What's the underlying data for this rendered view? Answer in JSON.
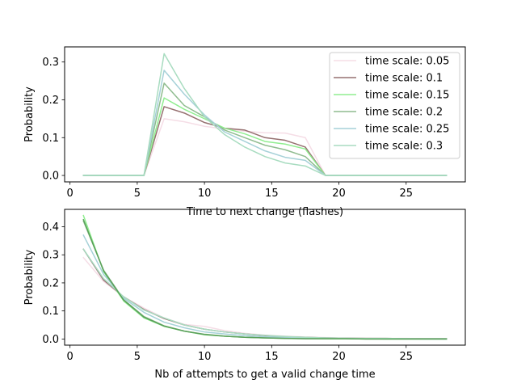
{
  "chart_data": [
    {
      "type": "line",
      "title": "",
      "xlabel": "Time to next change (flashes)",
      "ylabel": "Probability",
      "xlim": [
        -0.4,
        29.4
      ],
      "ylim": [
        -0.017,
        0.34
      ],
      "xticks": [
        0,
        5,
        10,
        15,
        20,
        25
      ],
      "yticks": [
        0.0,
        0.1,
        0.2,
        0.3
      ],
      "ytick_labels": [
        "0.0",
        "0.1",
        "0.2",
        "0.3"
      ],
      "grid": false,
      "legend_position": "top-right",
      "x": [
        1,
        2.5,
        4,
        5.5,
        7,
        8.5,
        10,
        11.5,
        13,
        14.5,
        16,
        17.5,
        19,
        20.5,
        22,
        23.5,
        25,
        26.5,
        28
      ],
      "series": [
        {
          "name": "time scale: 0.05",
          "color": "#f5dde6",
          "values": [
            0,
            0,
            0,
            0,
            0.15,
            0.142,
            0.13,
            0.123,
            0.117,
            0.113,
            0.112,
            0.1,
            0,
            0,
            0,
            0,
            0,
            0,
            0
          ]
        },
        {
          "name": "time scale: 0.1",
          "color": "#967070",
          "values": [
            0,
            0,
            0,
            0,
            0.182,
            0.165,
            0.14,
            0.125,
            0.12,
            0.1,
            0.093,
            0.075,
            0,
            0,
            0,
            0,
            0,
            0,
            0
          ]
        },
        {
          "name": "time scale: 0.15",
          "color": "#90ee90",
          "values": [
            0,
            0,
            0,
            0,
            0.205,
            0.175,
            0.15,
            0.125,
            0.11,
            0.09,
            0.083,
            0.07,
            0,
            0,
            0,
            0,
            0,
            0,
            0
          ]
        },
        {
          "name": "time scale: 0.2",
          "color": "#8fbc8f",
          "values": [
            0,
            0,
            0,
            0,
            0.244,
            0.185,
            0.155,
            0.12,
            0.1,
            0.08,
            0.068,
            0.05,
            0,
            0,
            0,
            0,
            0,
            0,
            0
          ]
        },
        {
          "name": "time scale: 0.25",
          "color": "#a6d1d8",
          "values": [
            0,
            0,
            0,
            0,
            0.278,
            0.215,
            0.16,
            0.115,
            0.09,
            0.065,
            0.048,
            0.04,
            0,
            0,
            0,
            0,
            0,
            0,
            0
          ]
        },
        {
          "name": "time scale: 0.3",
          "color": "#a8dcc0",
          "values": [
            0,
            0,
            0,
            0,
            0.322,
            0.23,
            0.155,
            0.108,
            0.075,
            0.05,
            0.033,
            0.025,
            0,
            0,
            0,
            0,
            0,
            0,
            0
          ]
        }
      ]
    },
    {
      "type": "line",
      "title": "",
      "xlabel": "Nb of attempts to get a valid change time",
      "ylabel": "Probability",
      "xlim": [
        -0.4,
        29.4
      ],
      "ylim": [
        -0.022,
        0.462
      ],
      "xticks": [
        0,
        5,
        10,
        15,
        20,
        25
      ],
      "yticks": [
        0.0,
        0.1,
        0.2,
        0.3,
        0.4
      ],
      "ytick_labels": [
        "0.0",
        "0.1",
        "0.2",
        "0.3",
        "0.4"
      ],
      "grid": false,
      "x": [
        1,
        2.5,
        4,
        5.5,
        7,
        8.5,
        10,
        11.5,
        13,
        14.5,
        16,
        17.5,
        19,
        20.5,
        22,
        23.5,
        25,
        26.5,
        28
      ],
      "series": [
        {
          "color": "#f5dde6",
          "values": [
            0.29,
            0.205,
            0.15,
            0.11,
            0.075,
            0.052,
            0.045,
            0.03,
            0.02,
            0.014,
            0.01,
            0.007,
            0.005,
            0.004,
            0.003,
            0.002,
            0.002,
            0.001,
            0.001
          ]
        },
        {
          "color": "#967070",
          "values": [
            0.32,
            0.21,
            0.15,
            0.105,
            0.073,
            0.05,
            0.035,
            0.025,
            0.018,
            0.012,
            0.008,
            0.006,
            0.004,
            0.003,
            0.002,
            0.002,
            0.001,
            0.001,
            0.001
          ]
        },
        {
          "color": "#90ee90",
          "values": [
            0.44,
            0.24,
            0.135,
            0.075,
            0.045,
            0.028,
            0.015,
            0.01,
            0.006,
            0.004,
            0.003,
            0.002,
            0.001,
            0.001,
            0.001,
            0.0,
            0.0,
            0.0,
            0.0
          ]
        },
        {
          "color": "#8fbc8f",
          "values": [
            0.42,
            0.245,
            0.14,
            0.08,
            0.047,
            0.028,
            0.017,
            0.01,
            0.006,
            0.004,
            0.002,
            0.001,
            0.001,
            0.001,
            0.0,
            0.0,
            0.0,
            0.0,
            0.0
          ]
        },
        {
          "color": "#a6d1d8",
          "values": [
            0.37,
            0.23,
            0.145,
            0.095,
            0.06,
            0.04,
            0.025,
            0.018,
            0.012,
            0.008,
            0.006,
            0.004,
            0.003,
            0.002,
            0.001,
            0.001,
            0.001,
            0.0,
            0.0
          ]
        },
        {
          "color": "#a8dcc0",
          "values": [
            0.32,
            0.215,
            0.15,
            0.103,
            0.075,
            0.05,
            0.035,
            0.025,
            0.018,
            0.013,
            0.009,
            0.006,
            0.004,
            0.003,
            0.002,
            0.002,
            0.001,
            0.001,
            0.001
          ]
        },
        {
          "color": "#5aa05a",
          "values": [
            0.425,
            0.243,
            0.138,
            0.078,
            0.046,
            0.028,
            0.016,
            0.01,
            0.006,
            0.004,
            0.002,
            0.001,
            0.001,
            0.001,
            0.0,
            0.0,
            0.0,
            0.0,
            0.0
          ]
        }
      ]
    }
  ]
}
